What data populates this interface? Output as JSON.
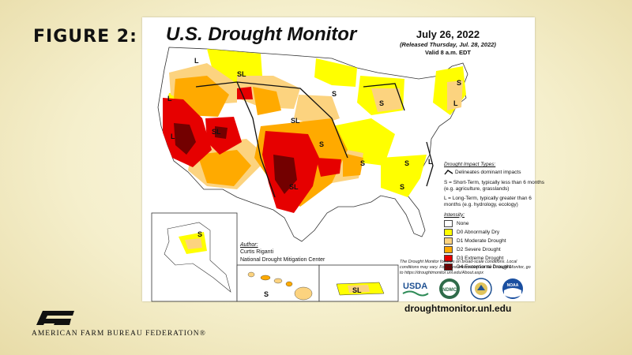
{
  "figure_label": "FIGURE 2:",
  "title": "U.S. Drought Monitor",
  "date": "July 26, 2022",
  "released": "(Released Thursday, Jul. 28, 2022)",
  "valid": "Valid 8 a.m. EDT",
  "impact_types": {
    "header": "Drought Impact Types:",
    "delineates": "Delineates dominant impacts",
    "short_term": "S = Short-Term, typically less than 6 months (e.g. agriculture, grasslands)",
    "long_term": "L = Long-Term, typically greater than 6 months (e.g. hydrology, ecology)"
  },
  "intensity": {
    "header": "Intensity:",
    "items": [
      {
        "label": "None",
        "color": "#ffffff"
      },
      {
        "label": "D0 Abnormally Dry",
        "color": "#ffff00"
      },
      {
        "label": "D1 Moderate Drought",
        "color": "#fcd37f"
      },
      {
        "label": "D2 Severe Drought",
        "color": "#ffaa00"
      },
      {
        "label": "D3 Extreme Drought",
        "color": "#e60000"
      },
      {
        "label": "D4 Exceptional Drought",
        "color": "#730000"
      }
    ]
  },
  "author": {
    "header": "Author:",
    "name": "Curtis Riganti",
    "org": "National Drought Mitigation Center"
  },
  "note": "The Drought Monitor focuses on broad-scale conditions. Local conditions may vary. For more information on the Drought Monitor, go to https://droughtmonitor.unl.edu/About.aspx",
  "logos": {
    "usda": "USDA",
    "ndmc": "NDMC",
    "noaa": "NOAA"
  },
  "url": "droughtmonitor.unl.edu",
  "map_labels": {
    "s": "S",
    "l": "L",
    "sl": "SL"
  },
  "footer_org": "AMERICAN FARM BUREAU FEDERATION®"
}
